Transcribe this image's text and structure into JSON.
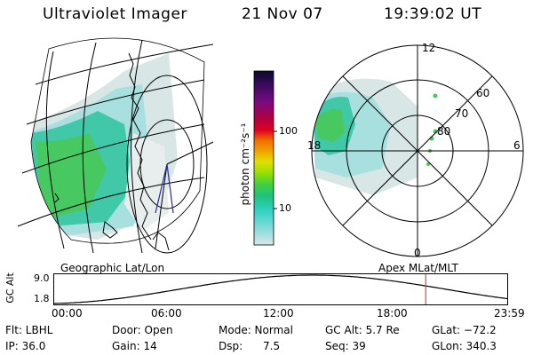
{
  "header": {
    "instrument": "Ultraviolet Imager",
    "date": "21 Nov 07",
    "time": "19:39:02 UT"
  },
  "left_panel": {
    "caption": "Geographic Lat/Lon"
  },
  "right_panel": {
    "caption": "Apex MLat/MLT",
    "mlt_labels": {
      "top": "12",
      "left": "18",
      "right": "6",
      "bottom": "0"
    },
    "lat_labels": [
      "60",
      "70",
      "80"
    ]
  },
  "colorbar": {
    "unit": "photon cm⁻²s⁻¹",
    "ticks": [
      "100",
      "10"
    ],
    "colors": [
      "#0a0a2a",
      "#3a0a60",
      "#7a0a80",
      "#b00040",
      "#e00020",
      "#f07000",
      "#f0a000",
      "#e0e000",
      "#a0e000",
      "#40d040",
      "#20c080",
      "#30d0c0",
      "#70d8d8",
      "#b0e0e0",
      "#d8e8e8"
    ]
  },
  "altitude_plot": {
    "ylabel": "GC Alt",
    "y_max_label": "9.0",
    "y_min_label": "1.8",
    "x_ticks": [
      "00:00",
      "06:00",
      "12:00",
      "18:00",
      "23:59"
    ],
    "current_time_fraction": 0.8188,
    "current_marker_color": "#cc2222"
  },
  "status": {
    "row1": {
      "flt": "Flt: LBHL",
      "door": "Door: Open",
      "mode": "Mode: Normal",
      "gc_alt": "GC Alt: 5.7 Re",
      "glat": "GLat: −72.2"
    },
    "row2": {
      "ip": "IP: 36.0",
      "gain": "Gain: 14",
      "dsp": "Dsp:      7.5",
      "seq": "Seq: 39",
      "glon": "GLon: 340.3"
    }
  }
}
